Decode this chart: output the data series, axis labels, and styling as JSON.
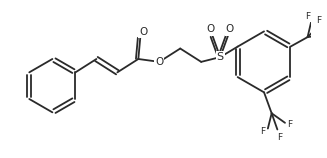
{
  "bg_color": "#ffffff",
  "line_color": "#2a2a2a",
  "line_width": 1.3,
  "font_size": 7.0,
  "figsize": [
    3.27,
    1.58
  ],
  "dpi": 100,
  "xlim": [
    0,
    327
  ],
  "ylim": [
    0,
    158
  ]
}
